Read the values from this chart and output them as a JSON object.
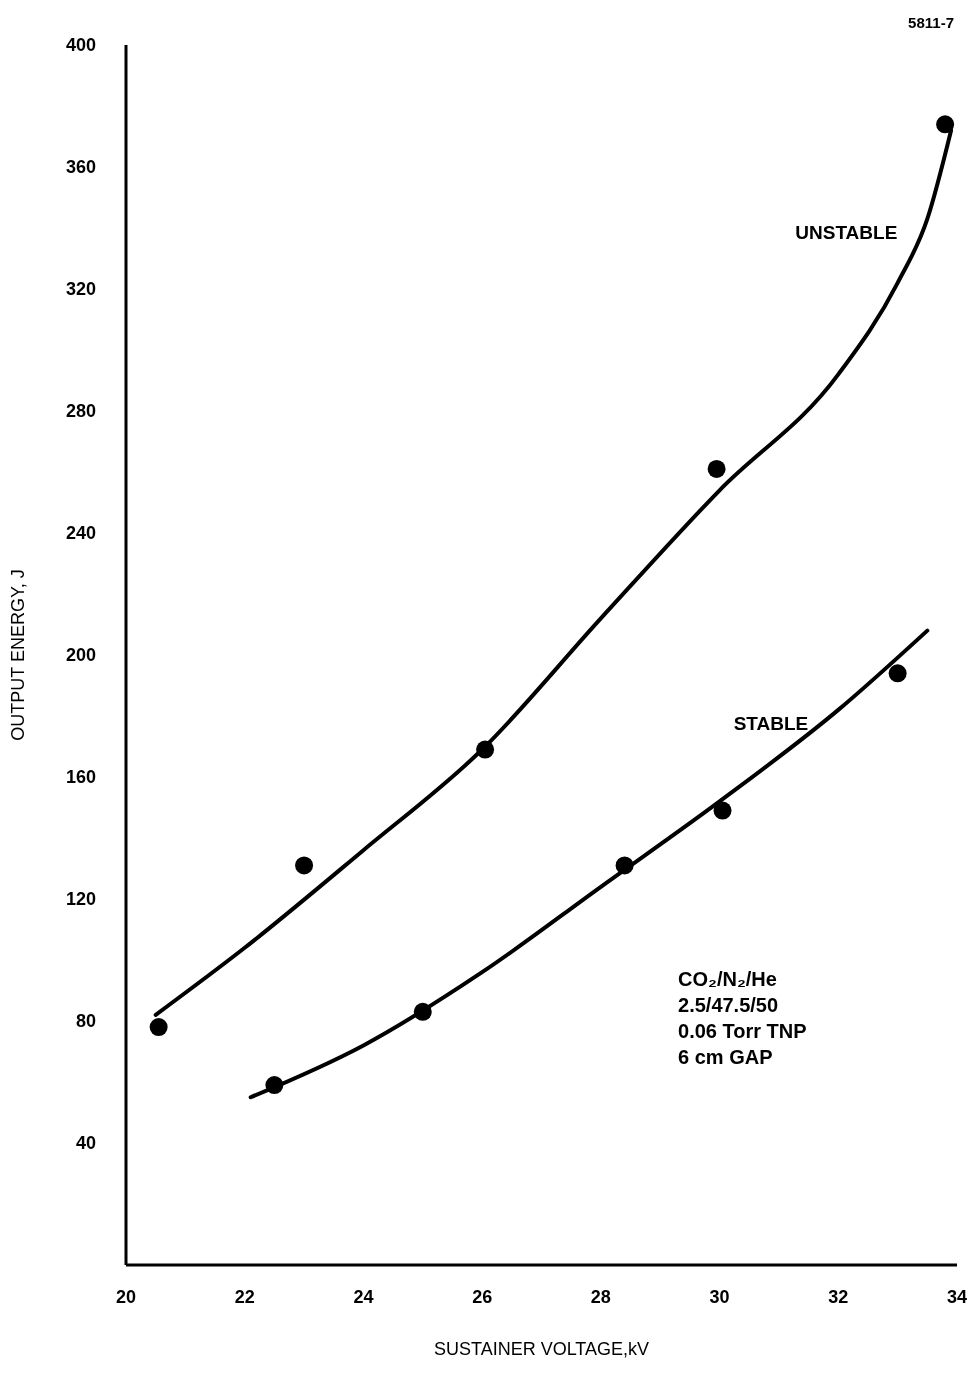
{
  "chart_data": {
    "type": "scatter",
    "xlabel": "SUSTAINER VOLTAGE,kV",
    "ylabel": "OUTPUT ENERGY, J",
    "xlim": [
      20,
      34
    ],
    "xticks": [
      20,
      22,
      24,
      26,
      28,
      30,
      32,
      34
    ],
    "ylim": [
      0,
      400
    ],
    "yticks": [
      40,
      80,
      120,
      160,
      200,
      240,
      280,
      320,
      360,
      400
    ],
    "grid": false,
    "legend": false,
    "series": [
      {
        "type": "scatter",
        "marker": "circle",
        "color": "#000000",
        "x": [
          20.55,
          23,
          26.05,
          29.95,
          33.8
        ],
        "values": [
          78,
          131,
          169,
          261,
          374
        ]
      },
      {
        "type": "scatter",
        "marker": "circle",
        "color": "#000000",
        "x": [
          22.5,
          25,
          28.4,
          30.05,
          33
        ],
        "values": [
          59,
          83,
          131,
          149,
          194
        ]
      },
      {
        "type": "line",
        "name": "UNSTABLE",
        "marker": "none",
        "color": "#000000",
        "x": [
          20.5,
          22,
          24,
          26,
          28,
          30,
          32,
          33,
          33.5,
          33.9
        ],
        "values": [
          82,
          104,
          136,
          169,
          212,
          254,
          292,
          322,
          343,
          372
        ]
      },
      {
        "type": "line",
        "name": "STABLE",
        "marker": "none",
        "color": "#000000",
        "x": [
          22.1,
          24,
          26,
          28,
          30,
          32,
          33.5
        ],
        "values": [
          55,
          72,
          96,
          124,
          152,
          182,
          208
        ]
      }
    ],
    "annotations": [
      "5811-7",
      "CO₂/N₂/He",
      "2.5/47.5/50",
      "0.06 Torr TNP",
      "6 cm GAP"
    ]
  }
}
